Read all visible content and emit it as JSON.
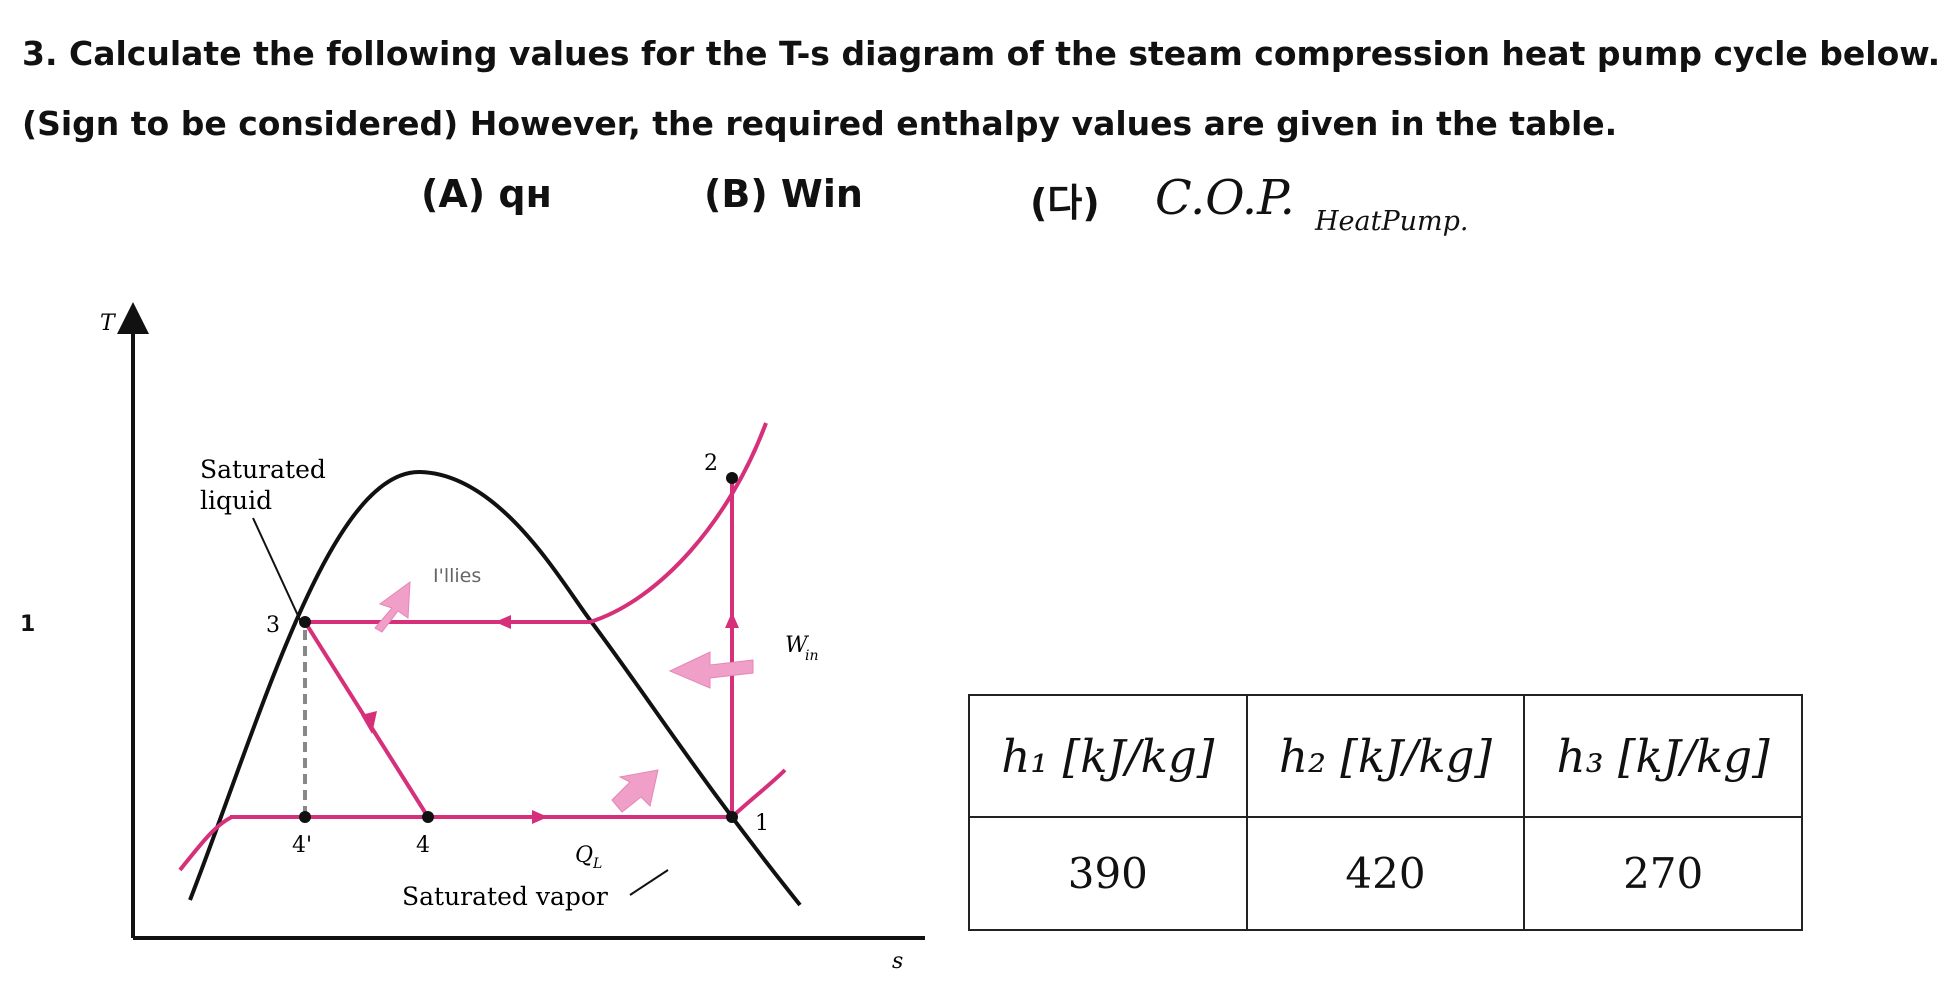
{
  "question": {
    "line1": "3. Calculate the following values for the T-s diagram of the steam compression heat pump cycle below.",
    "line2": "(Sign to be considered) However, the required enthalpy values are given in the table.",
    "part_a": "(A) qн",
    "part_b": "(B) Win",
    "part_c": "(다)",
    "cop_main": "C.O.P.",
    "cop_sub": "HeatPump."
  },
  "side_mark": "1",
  "diagram": {
    "axis_y": "T",
    "axis_x": "s",
    "sat_liquid_line1": "Saturated",
    "sat_liquid_line2": "liquid",
    "sat_vapor": "Saturated vapor",
    "q_h": "I'llies",
    "q_l": "Q",
    "q_l_sub": "L",
    "w_in": "W",
    "w_in_sub": "in",
    "points": {
      "p1": "1",
      "p2": "2",
      "p3": "3",
      "p4": "4",
      "p4p": "4'"
    }
  },
  "table": {
    "headers": [
      "h₁ [kJ/kg]",
      "h₂ [kJ/kg]",
      "h₃ [kJ/kg]"
    ],
    "values": [
      "390",
      "420",
      "270"
    ]
  },
  "colors": {
    "cycle": "#d6307a",
    "arrow_fill": "#f0a0c8",
    "curve": "#111111"
  }
}
